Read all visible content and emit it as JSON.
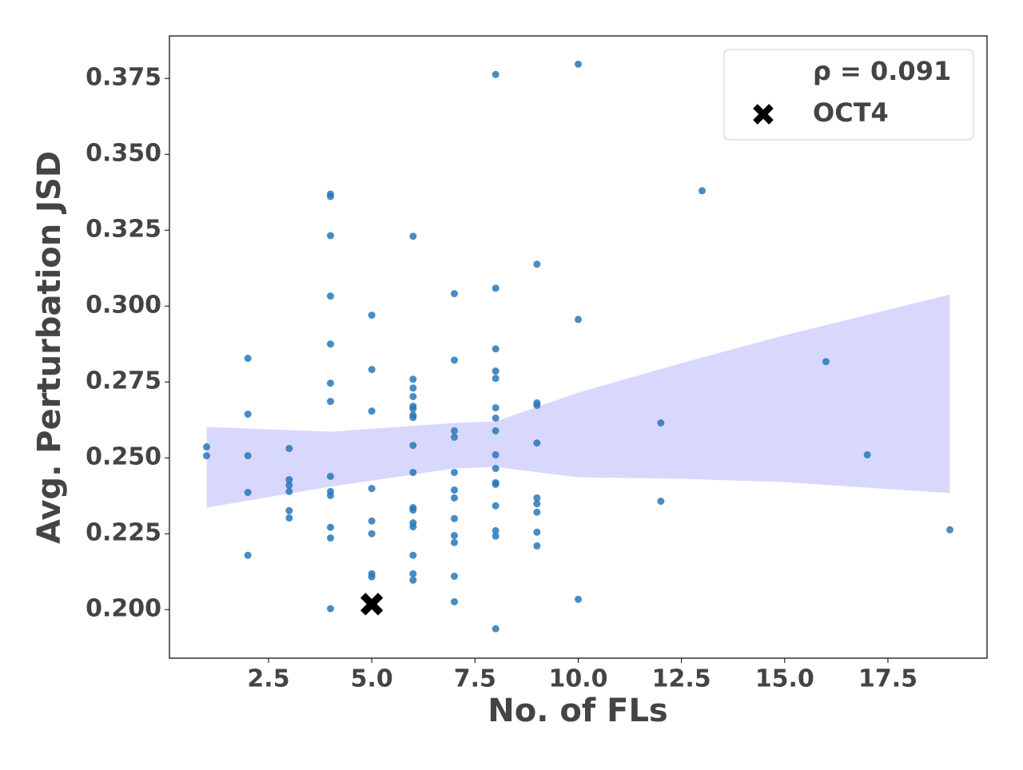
{
  "chart_data": {
    "type": "scatter",
    "xlabel": "No. of FLs",
    "ylabel": "Avg. Perturbation JSD",
    "xlim": [
      0.1,
      19.9
    ],
    "ylim": [
      0.184,
      0.389
    ],
    "xticks": [
      2.5,
      {
        "value": 5,
        "label": "5.0"
      },
      7.5,
      {
        "value": 10,
        "label": "10.0"
      },
      12.5,
      {
        "value": 15,
        "label": "15.0"
      },
      17.5
    ],
    "yticks": [
      {
        "value": 0.2,
        "label": "0.200"
      },
      0.225,
      {
        "value": 0.25,
        "label": "0.250"
      },
      0.275,
      {
        "value": 0.3,
        "label": "0.300"
      },
      0.325,
      {
        "value": 0.35,
        "label": "0.350"
      },
      0.375
    ],
    "legend_position": "upper right",
    "stats_label": "ρ = 0.091",
    "series": [
      {
        "color": "#2878b8",
        "x": [
          1,
          1,
          2,
          2,
          2,
          2,
          2,
          3,
          3,
          3,
          3,
          3,
          3,
          4,
          4,
          4,
          4,
          4,
          4,
          4,
          4,
          4,
          4,
          4,
          4,
          4,
          5,
          5,
          5,
          5,
          5,
          5,
          5,
          5,
          6,
          6,
          6,
          6,
          6,
          6,
          6,
          6,
          6,
          6,
          6,
          6,
          6,
          6,
          6,
          6,
          6,
          7,
          7,
          7,
          7,
          7,
          7,
          7,
          7,
          7,
          7,
          7,
          7,
          8,
          8,
          8,
          8,
          8,
          8,
          8,
          8,
          8,
          8,
          8,
          8,
          8,
          8,
          8,
          8,
          9,
          9,
          9,
          9,
          9,
          9,
          9,
          9,
          9,
          10,
          10,
          10,
          12,
          12,
          13,
          16,
          17,
          19
        ],
        "values": [
          0.2536,
          0.2507,
          0.2828,
          0.2644,
          0.2507,
          0.2386,
          0.2179,
          0.2531,
          0.2428,
          0.241,
          0.2389,
          0.2326,
          0.2302,
          0.3369,
          0.3361,
          0.3232,
          0.3033,
          0.2875,
          0.2746,
          0.2686,
          0.2439,
          0.2389,
          0.2376,
          0.2271,
          0.2236,
          0.2003,
          0.297,
          0.2791,
          0.2654,
          0.2399,
          0.2292,
          0.225,
          0.2118,
          0.2108,
          0.323,
          0.2759,
          0.273,
          0.2702,
          0.267,
          0.2662,
          0.2641,
          0.2633,
          0.2541,
          0.2452,
          0.2336,
          0.2328,
          0.2286,
          0.2273,
          0.2179,
          0.2118,
          0.2097,
          0.3041,
          0.2822,
          0.2589,
          0.2568,
          0.2452,
          0.2394,
          0.2368,
          0.23,
          0.2244,
          0.2221,
          0.211,
          0.2026,
          0.3763,
          0.3059,
          0.2859,
          0.2786,
          0.2762,
          0.2665,
          0.2631,
          0.2589,
          0.251,
          0.2465,
          0.2418,
          0.2413,
          0.2342,
          0.226,
          0.2242,
          0.1937,
          0.3138,
          0.2681,
          0.2673,
          0.2549,
          0.2368,
          0.2349,
          0.2321,
          0.2255,
          0.221,
          0.3797,
          0.2956,
          0.2034,
          0.2615,
          0.2357,
          0.338,
          0.2817,
          0.251,
          0.2263
        ]
      }
    ],
    "band": {
      "color": "#d8d8fc",
      "x": [
        1,
        4,
        7,
        8,
        10,
        12.5,
        15,
        19
      ],
      "lower": [
        0.2336,
        0.2405,
        0.2465,
        0.247,
        0.2436,
        0.2431,
        0.242,
        0.2384
      ],
      "upper": [
        0.2602,
        0.2586,
        0.2615,
        0.262,
        0.2715,
        0.2812,
        0.2904,
        0.3038
      ]
    },
    "highlight": {
      "name": "OCT4",
      "x": 5,
      "y": 0.2018,
      "color": "#000000"
    }
  }
}
